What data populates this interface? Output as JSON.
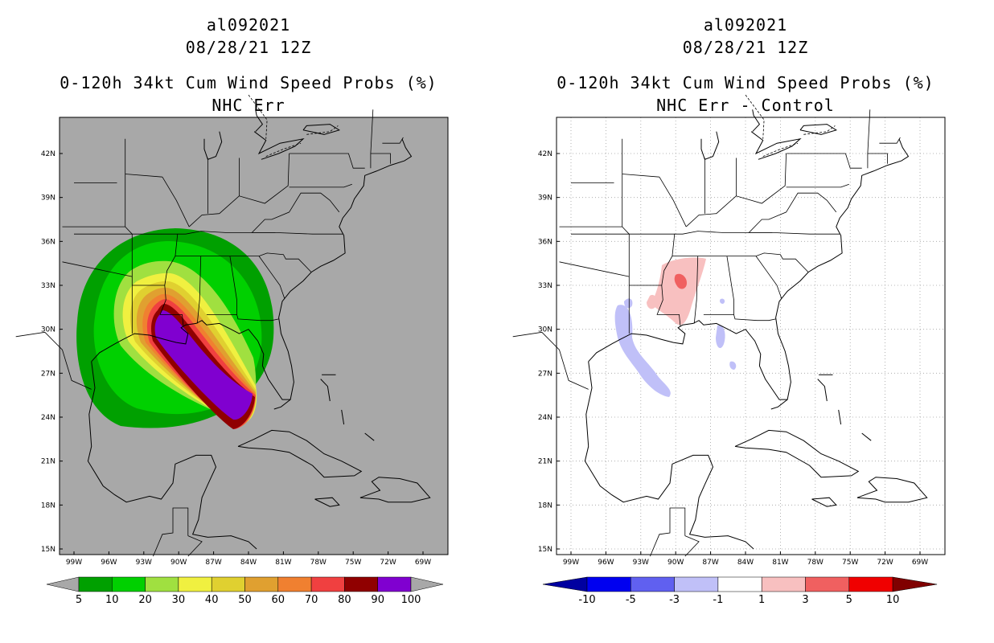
{
  "panels": [
    {
      "id": "left",
      "storm_id": "al092021",
      "datetime": "08/28/21 12Z",
      "product": "0-120h 34kt Cum Wind Speed Probs (%)",
      "subtitle": "NHC Err",
      "colorbar": {
        "labels": [
          "5",
          "10",
          "20",
          "30",
          "40",
          "50",
          "60",
          "70",
          "80",
          "90",
          "100"
        ],
        "colors": [
          "#00a000",
          "#00d000",
          "#a0e040",
          "#f0f040",
          "#e0d030",
          "#e0a030",
          "#f08030",
          "#f04040",
          "#900000",
          "#8000d0"
        ]
      }
    },
    {
      "id": "right",
      "storm_id": "al092021",
      "datetime": "08/28/21 12Z",
      "product": "0-120h 34kt Cum Wind Speed Probs (%)",
      "subtitle": "NHC Err - Control",
      "colorbar": {
        "labels": [
          "-10",
          "-5",
          "-3",
          "-1",
          "1",
          "3",
          "5",
          "10"
        ],
        "colors": [
          "#0000a0",
          "#0000f0",
          "#6060f0",
          "#c0c0f8",
          "#ffffff",
          "#f8c0c0",
          "#f06060",
          "#f00000",
          "#800000"
        ]
      }
    }
  ],
  "map": {
    "lat_labels": [
      "42N",
      "39N",
      "36N",
      "33N",
      "30N",
      "27N",
      "24N",
      "21N",
      "18N",
      "15N"
    ],
    "lon_labels": [
      "99W",
      "96W",
      "93W",
      "90W",
      "87W",
      "84W",
      "81W",
      "78W",
      "75W",
      "72W",
      "69W"
    ],
    "land_ocean_color_left": "#a8a8a8",
    "background_right": "#ffffff"
  }
}
